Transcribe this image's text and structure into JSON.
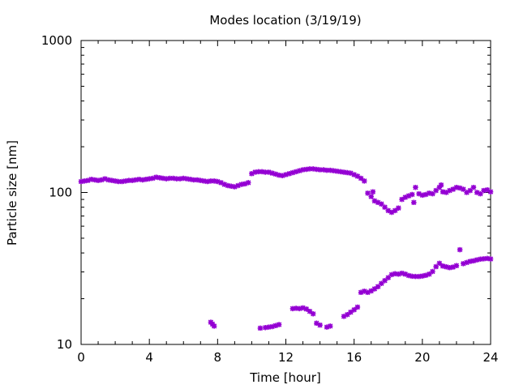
{
  "chart_data": {
    "type": "scatter",
    "title": "Modes location (3/19/19)",
    "xlabel": "Time [hour]",
    "ylabel": "Particle size [nm]",
    "xlim": [
      0,
      24
    ],
    "ylim": [
      10,
      1000
    ],
    "yscale": "log",
    "grid": false,
    "legend": "none",
    "marker_color": "#9400d3",
    "x_ticks": [
      "0",
      "4",
      "8",
      "12",
      "16",
      "20",
      "24"
    ],
    "y_ticks": [
      "10",
      "100",
      "1000"
    ],
    "series": [
      {
        "points": [
          [
            0.0,
            118
          ],
          [
            0.2,
            119
          ],
          [
            0.4,
            120
          ],
          [
            0.6,
            122
          ],
          [
            0.8,
            121
          ],
          [
            1.0,
            120
          ],
          [
            1.2,
            121
          ],
          [
            1.4,
            123
          ],
          [
            1.6,
            121
          ],
          [
            1.8,
            120
          ],
          [
            2.0,
            119
          ],
          [
            2.2,
            118
          ],
          [
            2.4,
            118
          ],
          [
            2.6,
            119
          ],
          [
            2.8,
            120
          ],
          [
            3.0,
            120
          ],
          [
            3.2,
            121
          ],
          [
            3.4,
            122
          ],
          [
            3.6,
            121
          ],
          [
            3.8,
            122
          ],
          [
            4.0,
            123
          ],
          [
            4.2,
            124
          ],
          [
            4.4,
            126
          ],
          [
            4.6,
            125
          ],
          [
            4.8,
            124
          ],
          [
            5.0,
            123
          ],
          [
            5.2,
            124
          ],
          [
            5.4,
            124
          ],
          [
            5.6,
            123
          ],
          [
            5.8,
            123
          ],
          [
            6.0,
            124
          ],
          [
            6.2,
            123
          ],
          [
            6.4,
            122
          ],
          [
            6.6,
            121
          ],
          [
            6.8,
            121
          ],
          [
            7.0,
            120
          ],
          [
            7.2,
            119
          ],
          [
            7.4,
            118
          ],
          [
            7.6,
            119
          ],
          [
            7.8,
            119
          ],
          [
            8.0,
            118
          ],
          [
            8.2,
            116
          ],
          [
            8.4,
            113
          ],
          [
            8.6,
            111
          ],
          [
            8.8,
            110
          ],
          [
            9.0,
            109
          ],
          [
            9.2,
            111
          ],
          [
            9.4,
            113
          ],
          [
            9.6,
            114
          ],
          [
            9.8,
            116
          ],
          [
            10.0,
            133
          ],
          [
            10.2,
            136
          ],
          [
            10.4,
            137
          ],
          [
            10.6,
            137
          ],
          [
            10.8,
            136
          ],
          [
            11.0,
            136
          ],
          [
            11.2,
            134
          ],
          [
            11.4,
            132
          ],
          [
            11.6,
            130
          ],
          [
            11.8,
            129
          ],
          [
            12.0,
            131
          ],
          [
            12.2,
            133
          ],
          [
            12.4,
            135
          ],
          [
            12.6,
            137
          ],
          [
            12.8,
            139
          ],
          [
            13.0,
            141
          ],
          [
            13.2,
            142
          ],
          [
            13.4,
            143
          ],
          [
            13.6,
            143
          ],
          [
            13.8,
            142
          ],
          [
            14.0,
            141
          ],
          [
            14.2,
            141
          ],
          [
            14.4,
            140
          ],
          [
            14.6,
            140
          ],
          [
            14.8,
            139
          ],
          [
            15.0,
            138
          ],
          [
            15.2,
            137
          ],
          [
            15.4,
            136
          ],
          [
            15.6,
            135
          ],
          [
            15.8,
            134
          ],
          [
            16.0,
            131
          ],
          [
            16.2,
            128
          ],
          [
            16.4,
            124
          ],
          [
            16.6,
            119
          ],
          [
            16.8,
            99
          ],
          [
            17.0,
            94
          ],
          [
            17.1,
            101
          ],
          [
            17.2,
            88
          ],
          [
            17.4,
            86
          ],
          [
            17.6,
            84
          ],
          [
            17.8,
            80
          ],
          [
            18.0,
            76
          ],
          [
            18.2,
            74
          ],
          [
            18.4,
            76
          ],
          [
            18.6,
            79
          ],
          [
            18.8,
            90
          ],
          [
            19.0,
            93
          ],
          [
            19.2,
            95
          ],
          [
            19.4,
            97
          ],
          [
            19.5,
            86
          ],
          [
            19.6,
            108
          ],
          [
            19.8,
            98
          ],
          [
            20.0,
            96
          ],
          [
            20.2,
            97
          ],
          [
            20.4,
            99
          ],
          [
            20.6,
            98
          ],
          [
            20.8,
            103
          ],
          [
            21.0,
            108
          ],
          [
            21.1,
            112
          ],
          [
            21.2,
            101
          ],
          [
            21.4,
            100
          ],
          [
            21.6,
            103
          ],
          [
            21.8,
            105
          ],
          [
            22.0,
            108
          ],
          [
            22.2,
            107
          ],
          [
            22.4,
            105
          ],
          [
            22.6,
            100
          ],
          [
            22.8,
            103
          ],
          [
            23.0,
            108
          ],
          [
            23.2,
            100
          ],
          [
            23.4,
            98
          ],
          [
            23.6,
            103
          ],
          [
            23.8,
            104
          ],
          [
            24.0,
            101
          ]
        ]
      },
      {
        "points": [
          [
            7.6,
            14.0
          ],
          [
            7.7,
            13.6
          ],
          [
            7.8,
            13.2
          ],
          [
            10.5,
            12.8
          ],
          [
            10.8,
            12.9
          ],
          [
            11.0,
            13.0
          ],
          [
            11.2,
            13.1
          ],
          [
            11.4,
            13.3
          ],
          [
            11.6,
            13.5
          ],
          [
            12.4,
            17.2
          ],
          [
            12.6,
            17.3
          ],
          [
            12.8,
            17.2
          ],
          [
            13.0,
            17.4
          ],
          [
            13.2,
            17.1
          ],
          [
            13.4,
            16.5
          ],
          [
            13.6,
            15.9
          ],
          [
            13.8,
            13.8
          ],
          [
            14.0,
            13.4
          ],
          [
            14.4,
            13.0
          ],
          [
            14.6,
            13.2
          ],
          [
            15.4,
            15.3
          ],
          [
            15.6,
            15.7
          ],
          [
            15.8,
            16.3
          ],
          [
            16.0,
            16.9
          ],
          [
            16.2,
            17.6
          ],
          [
            16.4,
            22.0
          ],
          [
            16.6,
            22.4
          ],
          [
            16.8,
            22.0
          ],
          [
            17.0,
            22.5
          ],
          [
            17.2,
            23.2
          ],
          [
            17.4,
            24.0
          ],
          [
            17.6,
            25.2
          ],
          [
            17.8,
            26.3
          ],
          [
            18.0,
            27.5
          ],
          [
            18.2,
            28.8
          ],
          [
            18.4,
            29.2
          ],
          [
            18.6,
            29.0
          ],
          [
            18.8,
            29.4
          ],
          [
            19.0,
            29.0
          ],
          [
            19.2,
            28.4
          ],
          [
            19.4,
            28.1
          ],
          [
            19.6,
            28.0
          ],
          [
            19.8,
            28.0
          ],
          [
            20.0,
            28.2
          ],
          [
            20.2,
            28.5
          ],
          [
            20.4,
            29.0
          ],
          [
            20.6,
            30.2
          ],
          [
            20.8,
            32.5
          ],
          [
            21.0,
            34.2
          ],
          [
            21.2,
            32.8
          ],
          [
            21.4,
            32.4
          ],
          [
            21.6,
            32.0
          ],
          [
            21.8,
            32.3
          ],
          [
            22.0,
            33.0
          ],
          [
            22.2,
            42.0
          ],
          [
            22.4,
            34.0
          ],
          [
            22.6,
            34.6
          ],
          [
            22.8,
            35.2
          ],
          [
            23.0,
            35.5
          ],
          [
            23.2,
            36.0
          ],
          [
            23.4,
            36.4
          ],
          [
            23.6,
            36.6
          ],
          [
            23.8,
            36.8
          ],
          [
            24.0,
            36.5
          ]
        ]
      }
    ]
  }
}
